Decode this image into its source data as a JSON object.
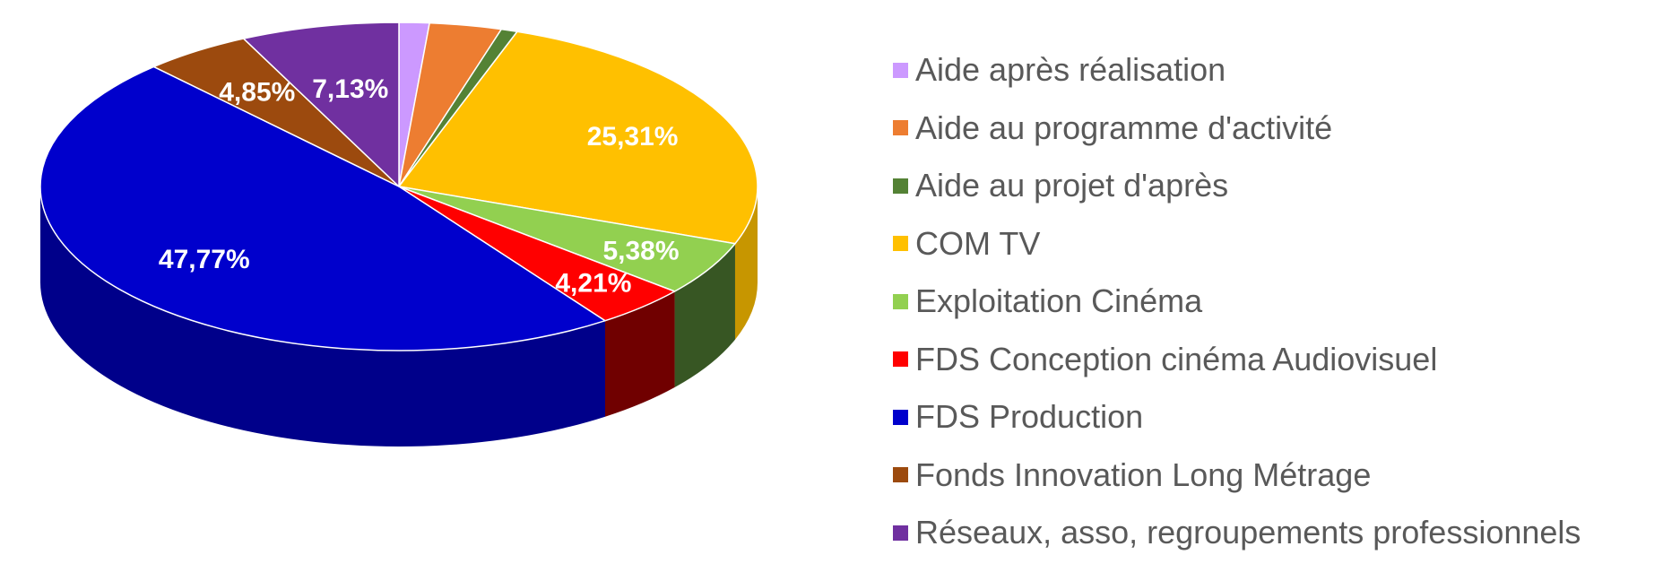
{
  "chart_data": {
    "type": "pie",
    "title": "",
    "legend_position": "right",
    "slices": [
      {
        "name": "Aide après réalisation",
        "value": 1.36,
        "label": "",
        "color": "#cc99ff",
        "side": "#a37acc"
      },
      {
        "name": "Aide au programme d'activité",
        "value": 3.25,
        "label": "",
        "color": "#ed7d31",
        "side": "#b85f24"
      },
      {
        "name": "Aide au projet d'après",
        "value": 0.74,
        "label": "",
        "color": "#548235",
        "side": "#3a5a25"
      },
      {
        "name": "COM TV",
        "value": 25.31,
        "label": "25,31%",
        "color": "#ffc000",
        "side": "#c79600"
      },
      {
        "name": "Exploitation Cinéma",
        "value": 5.38,
        "label": "5,38%",
        "color": "#92d050",
        "side": "#375623"
      },
      {
        "name": "FDS Conception cinéma Audiovisuel",
        "value": 4.21,
        "label": "4,21%",
        "color": "#ff0000",
        "side": "#700000"
      },
      {
        "name": "FDS Production",
        "value": 47.77,
        "label": "47,77%",
        "color": "#0000cc",
        "side": "#00008a"
      },
      {
        "name": "Fonds Innovation Long Métrage",
        "value": 4.85,
        "label": "4,85%",
        "color": "#9c4a0e",
        "side": "#6e3309"
      },
      {
        "name": "Réseaux, asso, regroupements professionnels",
        "value": 7.13,
        "label": "7,13%",
        "color": "#7030a0",
        "side": "#4e2270"
      }
    ]
  }
}
